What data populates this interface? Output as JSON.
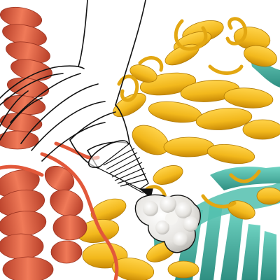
{
  "illustration": {
    "subject": "protein-structure-with-drawn-tube",
    "colors": {
      "background": "#ffffff",
      "helix_red": "#ec6a4a",
      "helix_red_dark": "#b8402a",
      "helix_yellow": "#f2b81c",
      "helix_yellow_dark": "#c98a06",
      "sheet_teal": "#52bfae",
      "sheet_teal_dark": "#2f8f82",
      "ligand_white": "#ecebe8",
      "ligand_shadow": "#b9b7b2",
      "ink": "#111111"
    },
    "icons": [
      "hand-drawn-tube-icon",
      "nozzle-icon",
      "ligand-molecule-icon"
    ]
  }
}
